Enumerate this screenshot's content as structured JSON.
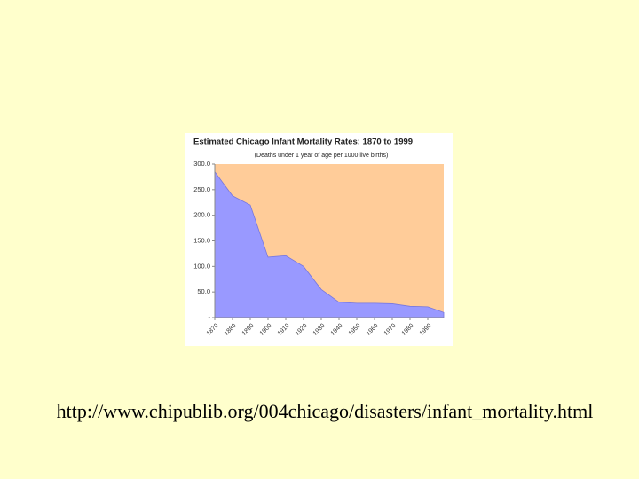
{
  "chart_data": {
    "type": "area",
    "title": "Estimated Chicago Infant Mortality Rates: 1870 to 1999",
    "subtitle": "(Deaths under 1 year of age per 1000 live births)",
    "x": [
      1870,
      1880,
      1890,
      1900,
      1910,
      1920,
      1930,
      1940,
      1950,
      1960,
      1970,
      1980,
      1990,
      1999
    ],
    "values": [
      285,
      238,
      220,
      118,
      121,
      100,
      55,
      30,
      28,
      28,
      27,
      22,
      21,
      10
    ],
    "color": "#9999ff",
    "plot_background": "#ffcc99",
    "xlim": [
      1870,
      1999
    ],
    "xticks": [
      1870,
      1880,
      1890,
      1900,
      1910,
      1920,
      1930,
      1940,
      1950,
      1960,
      1970,
      1980,
      1990
    ],
    "ylim": [
      0,
      300
    ],
    "yticks": [
      {
        "value": 0,
        "label": "-"
      },
      {
        "value": 50,
        "label": "50.0"
      },
      {
        "value": 100,
        "label": "100.0"
      },
      {
        "value": 150,
        "label": "150.0"
      },
      {
        "value": 200,
        "label": "200.0"
      },
      {
        "value": 250,
        "label": "250.0"
      },
      {
        "value": 300,
        "label": "300.0"
      }
    ]
  },
  "caption": "http://www.chipublib.org/004chicago/disasters/infant_mortality.html"
}
